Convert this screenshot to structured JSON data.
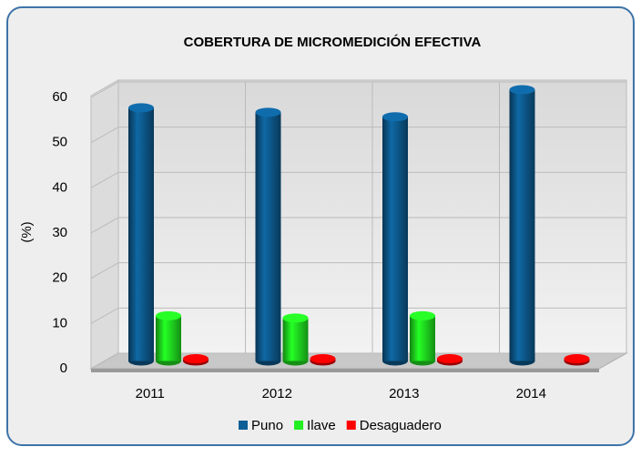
{
  "chart_data": {
    "type": "bar",
    "title": "COBERTURA DE MICROMEDICIÓN EFECTIVA",
    "y_label": "(%)",
    "categories": [
      "2011",
      "2012",
      "2013",
      "2014"
    ],
    "series": [
      {
        "name": "Puno",
        "color": "#0e5f96",
        "values": [
          56,
          55,
          54,
          60
        ]
      },
      {
        "name": "Ilave",
        "color": "#22ee22",
        "values": [
          10,
          9.5,
          10,
          null
        ]
      },
      {
        "name": "Desaguadero",
        "color": "#ff0000",
        "values": [
          0.5,
          0.5,
          0.5,
          0.5
        ]
      }
    ],
    "ylim": [
      0,
      60
    ],
    "yticks": [
      0,
      10,
      20,
      30,
      40,
      50,
      60
    ],
    "grid": true,
    "legend": "bottom"
  }
}
